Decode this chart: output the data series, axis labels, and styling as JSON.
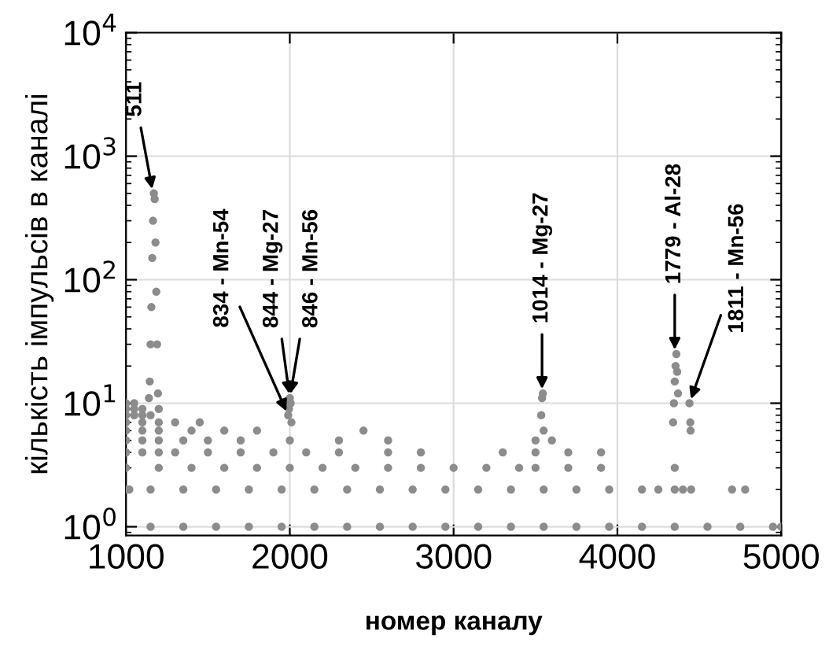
{
  "chart_data": {
    "type": "scatter",
    "xlabel": "номер каналу",
    "ylabel": "кількість імпульсів в каналі",
    "log": "y",
    "grid": true,
    "marker": "circle",
    "xlim": [
      1000,
      5000
    ],
    "xticks": [
      1000,
      2000,
      3000,
      4000,
      5000
    ],
    "ylim": [
      0.85,
      10000
    ],
    "yticks": [
      {
        "value": 1,
        "label": "10$^{0}$"
      },
      {
        "value": 10,
        "label": "10$^{1}$"
      },
      {
        "value": 100,
        "label": "10$^{2}$"
      },
      {
        "value": 1000,
        "label": "10$^{3}$"
      },
      {
        "value": 10000,
        "label": "10$^{4}$"
      }
    ],
    "series": [
      {
        "color": "#8c8c8c",
        "x": [
          1150,
          1350,
          1550,
          1750,
          1950,
          2150,
          2350,
          2550,
          2750,
          2950,
          3150,
          3350,
          3550,
          3750,
          3950,
          4150,
          4350,
          4550,
          4750,
          4950,
          5000,
          1000,
          1020,
          1150,
          1350,
          1550,
          1750,
          1950,
          2150,
          2350,
          2550,
          2750,
          2950,
          3150,
          3350,
          3550,
          3750,
          3950,
          4150,
          4250,
          4350,
          4400,
          4450,
          4700,
          4780,
          1000,
          1200,
          1400,
          1600,
          1800,
          2000,
          2200,
          2400,
          2600,
          2800,
          3000,
          3200,
          3400,
          3500,
          3700,
          3900,
          4350,
          1000,
          1100,
          1200,
          1300,
          1500,
          1700,
          1900,
          2100,
          2300,
          2600,
          2800,
          3300,
          3500,
          3700,
          3900,
          1000,
          1100,
          1200,
          1350,
          1500,
          1700,
          2000,
          2300,
          2600,
          3500,
          3600,
          1000,
          1100,
          1200,
          1400,
          1600,
          1800,
          2450,
          3550,
          1000,
          1100,
          1200,
          1300,
          1450,
          1000,
          1050,
          1100,
          1150,
          1000,
          1050,
          1100,
          1000,
          1050,
          1140,
          1145,
          1150,
          1155,
          1160,
          1165,
          1170,
          1175,
          1180,
          1185,
          1190,
          1195,
          1200,
          1990,
          1995,
          2000,
          2005,
          2010,
          3535,
          3540,
          3545,
          4340,
          4345,
          4350,
          4355,
          4360,
          4365,
          4370,
          4440,
          4445,
          4447
        ],
        "values": [
          1,
          1,
          1,
          1,
          1,
          1,
          1,
          1,
          1,
          1,
          1,
          1,
          1,
          1,
          1,
          1,
          1,
          1,
          1,
          1,
          1,
          2,
          2,
          2,
          2,
          2,
          2,
          2,
          2,
          2,
          2,
          2,
          2,
          2,
          2,
          2,
          2,
          2,
          2,
          2,
          2,
          2,
          2,
          2,
          2,
          3,
          3,
          3,
          3,
          3,
          3,
          3,
          3,
          3,
          3,
          3,
          3,
          3,
          3,
          3,
          3,
          3,
          4,
          4,
          4,
          4,
          4,
          4,
          4,
          4,
          4,
          4,
          4,
          4,
          4,
          4,
          4,
          5,
          5,
          5,
          5,
          5,
          5,
          5,
          5,
          5,
          5,
          5,
          6,
          6,
          6,
          6,
          6,
          6,
          6,
          6,
          7,
          7,
          7,
          7,
          7,
          8,
          8,
          8,
          8,
          9,
          9,
          9,
          10,
          10,
          11,
          15,
          30,
          60,
          150,
          300,
          500,
          450,
          200,
          80,
          30,
          12,
          9,
          8,
          9,
          11,
          10,
          7,
          8,
          11,
          12,
          7,
          10,
          15,
          20,
          25,
          18,
          12,
          10,
          7,
          6
        ]
      }
    ],
    "annotations": [
      {
        "text": "511",
        "x": 1165,
        "y": 500
      },
      {
        "text": "834 - Mn-54",
        "x": 1990,
        "y": 8
      },
      {
        "text": "844 - Mg-27",
        "x": 2000,
        "y": 11
      },
      {
        "text": "846 - Mn-56",
        "x": 2000,
        "y": 11
      },
      {
        "text": "1014 - Mg-27",
        "x": 3540,
        "y": 12
      },
      {
        "text": "1779 - Al-28",
        "x": 4350,
        "y": 25
      },
      {
        "text": "1811 - Mn-56",
        "x": 4440,
        "y": 10
      }
    ]
  }
}
